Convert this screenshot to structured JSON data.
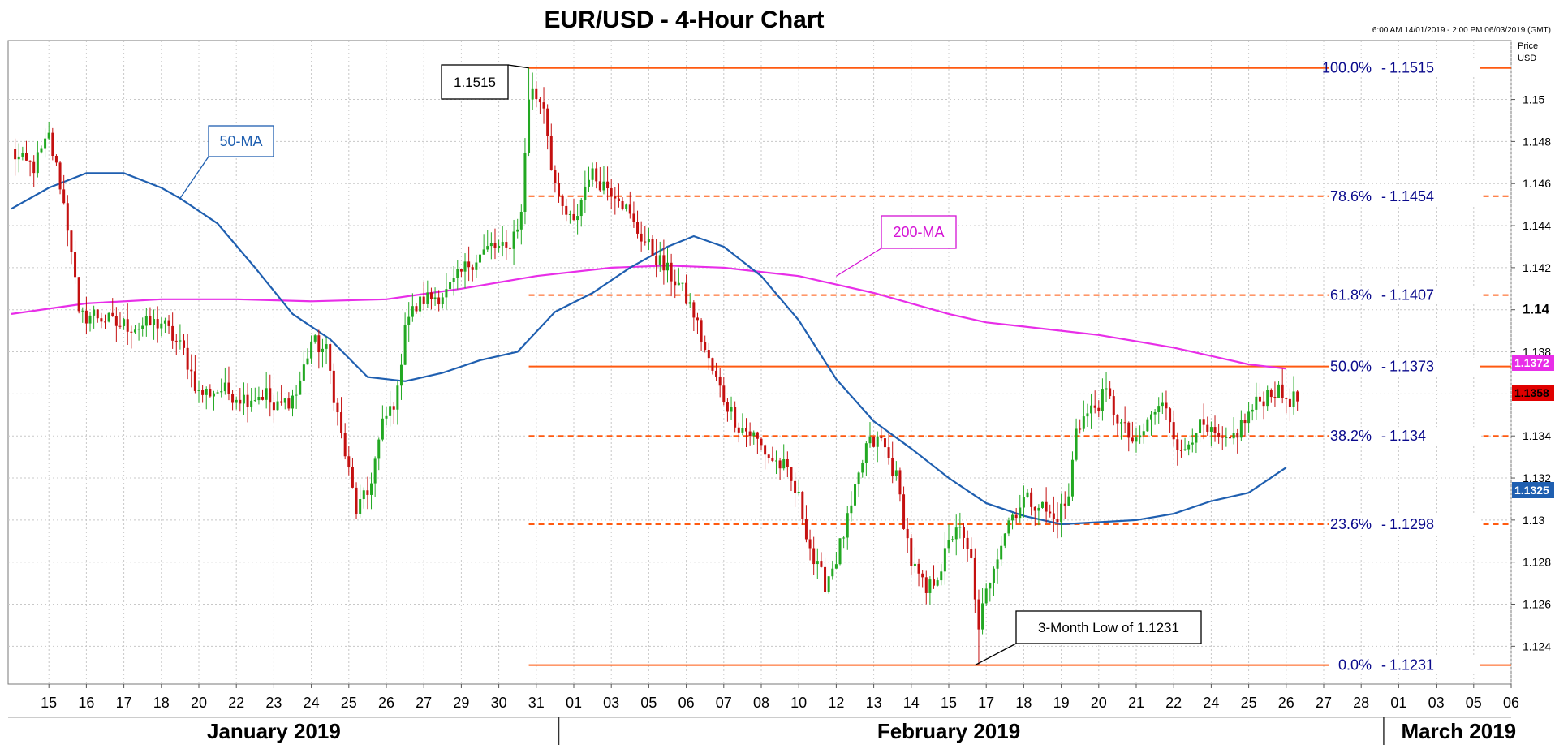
{
  "chart_data": {
    "type": "candlestick",
    "title": "EUR/USD - 4-Hour Chart",
    "date_range": "6:00 AM 14/01/2019 - 2:00 PM 06/03/2019 (GMT)",
    "y_axis_title": [
      "Price",
      "USD"
    ],
    "ylim": [
      1.1222,
      1.1528
    ],
    "y_ticks": [
      {
        "value": 1.124,
        "label": "1.124"
      },
      {
        "value": 1.126,
        "label": "1.126"
      },
      {
        "value": 1.128,
        "label": "1.128"
      },
      {
        "value": 1.13,
        "label": "1.13"
      },
      {
        "value": 1.132,
        "label": "1.132"
      },
      {
        "value": 1.134,
        "label": "1.134"
      },
      {
        "value": 1.136,
        "label": "1.136"
      },
      {
        "value": 1.138,
        "label": "1.138"
      },
      {
        "value": 1.14,
        "label": "1.14",
        "bold": true
      },
      {
        "value": 1.142,
        "label": "1.142"
      },
      {
        "value": 1.144,
        "label": "1.144"
      },
      {
        "value": 1.146,
        "label": "1.146"
      },
      {
        "value": 1.148,
        "label": "1.148"
      },
      {
        "value": 1.15,
        "label": "1.15"
      }
    ],
    "x_ticks": [
      {
        "label": "15",
        "i": 10
      },
      {
        "label": "16",
        "i": 20
      },
      {
        "label": "17",
        "i": 30
      },
      {
        "label": "18",
        "i": 40
      },
      {
        "label": "20",
        "i": 50
      },
      {
        "label": "22",
        "i": 60
      },
      {
        "label": "23",
        "i": 70
      },
      {
        "label": "24",
        "i": 80
      },
      {
        "label": "25",
        "i": 90
      },
      {
        "label": "26",
        "i": 100
      },
      {
        "label": "27",
        "i": 110
      },
      {
        "label": "29",
        "i": 120
      },
      {
        "label": "30",
        "i": 130
      },
      {
        "label": "31",
        "i": 140
      },
      {
        "label": "01",
        "i": 150
      },
      {
        "label": "03",
        "i": 160
      },
      {
        "label": "05",
        "i": 170
      },
      {
        "label": "06",
        "i": 180
      },
      {
        "label": "07",
        "i": 190
      },
      {
        "label": "08",
        "i": 200
      },
      {
        "label": "10",
        "i": 210
      },
      {
        "label": "12",
        "i": 220
      },
      {
        "label": "13",
        "i": 230
      },
      {
        "label": "14",
        "i": 240
      },
      {
        "label": "15",
        "i": 250
      },
      {
        "label": "17",
        "i": 260
      },
      {
        "label": "18",
        "i": 270
      },
      {
        "label": "19",
        "i": 280
      },
      {
        "label": "20",
        "i": 290
      },
      {
        "label": "21",
        "i": 300
      },
      {
        "label": "22",
        "i": 310
      },
      {
        "label": "24",
        "i": 320
      },
      {
        "label": "25",
        "i": 330
      },
      {
        "label": "26",
        "i": 340
      },
      {
        "label": "27",
        "i": 350
      },
      {
        "label": "28",
        "i": 360
      },
      {
        "label": "01",
        "i": 370
      },
      {
        "label": "03",
        "i": 380
      },
      {
        "label": "05",
        "i": 390
      },
      {
        "label": "06",
        "i": 400
      }
    ],
    "months": [
      {
        "label": "January 2019",
        "i": 70
      },
      {
        "label": "February 2019",
        "i": 250
      },
      {
        "label": "March 2019",
        "i": 386
      }
    ],
    "month_separators": [
      146,
      366
    ],
    "fib_levels": [
      {
        "value": 1.1515,
        "label": "100.0%",
        "price": "1.1515",
        "style": "solid"
      },
      {
        "value": 1.1454,
        "label": "78.6%",
        "price": "1.1454",
        "style": "dashed"
      },
      {
        "value": 1.1407,
        "label": "61.8%",
        "price": "1.1407",
        "style": "dashed"
      },
      {
        "value": 1.1373,
        "label": "50.0%",
        "price": "1.1373",
        "style": "solid"
      },
      {
        "value": 1.134,
        "label": "38.2%",
        "price": "1.134",
        "style": "dashed"
      },
      {
        "value": 1.1298,
        "label": "23.6%",
        "price": "1.1298",
        "style": "dashed"
      },
      {
        "value": 1.1231,
        "label": "0.0%",
        "price": "1.1231",
        "style": "solid"
      }
    ],
    "fib_start_i": 138,
    "price_tags": [
      {
        "value": 1.1372,
        "label": "1.1372",
        "color": "#e82ee8"
      },
      {
        "value": 1.1358,
        "label": "1.1358",
        "color": "#e00000"
      },
      {
        "value": 1.1325,
        "label": "1.1325",
        "color": "#1f5fb0"
      }
    ],
    "annotations": [
      {
        "text": "1.1515",
        "target_i": 138,
        "target_v": 1.1515
      },
      {
        "text": "50-MA",
        "target_i": 45,
        "target_v": 1.1453,
        "color": "#1f5fb0"
      },
      {
        "text": "200-MA",
        "target_i": 220,
        "target_v": 1.1416,
        "color": "#d412d4"
      },
      {
        "text": "3-Month Low of 1.1231",
        "target_i": 257,
        "target_v": 1.1231
      }
    ],
    "ma_50": {
      "name": "50-MA",
      "points": [
        [
          0,
          1.1448
        ],
        [
          10,
          1.1458
        ],
        [
          20,
          1.1465
        ],
        [
          30,
          1.1465
        ],
        [
          40,
          1.1458
        ],
        [
          45,
          1.1453
        ],
        [
          55,
          1.1441
        ],
        [
          65,
          1.142
        ],
        [
          75,
          1.1398
        ],
        [
          85,
          1.1386
        ],
        [
          95,
          1.1368
        ],
        [
          105,
          1.1366
        ],
        [
          115,
          1.137
        ],
        [
          125,
          1.1376
        ],
        [
          135,
          1.138
        ],
        [
          145,
          1.1399
        ],
        [
          155,
          1.1408
        ],
        [
          165,
          1.142
        ],
        [
          175,
          1.143
        ],
        [
          182,
          1.1435
        ],
        [
          190,
          1.143
        ],
        [
          200,
          1.1416
        ],
        [
          210,
          1.1395
        ],
        [
          220,
          1.1367
        ],
        [
          230,
          1.1347
        ],
        [
          240,
          1.1334
        ],
        [
          250,
          1.132
        ],
        [
          260,
          1.1308
        ],
        [
          270,
          1.1302
        ],
        [
          280,
          1.1298
        ],
        [
          290,
          1.1299
        ],
        [
          300,
          1.13
        ],
        [
          310,
          1.1303
        ],
        [
          320,
          1.1309
        ],
        [
          330,
          1.1313
        ],
        [
          340,
          1.1325
        ]
      ]
    },
    "ma_200": {
      "name": "200-MA",
      "points": [
        [
          0,
          1.1398
        ],
        [
          20,
          1.1403
        ],
        [
          40,
          1.1405
        ],
        [
          60,
          1.1405
        ],
        [
          80,
          1.1404
        ],
        [
          100,
          1.1405
        ],
        [
          120,
          1.141
        ],
        [
          140,
          1.1416
        ],
        [
          160,
          1.142
        ],
        [
          175,
          1.1421
        ],
        [
          190,
          1.142
        ],
        [
          200,
          1.1418
        ],
        [
          210,
          1.1416
        ],
        [
          220,
          1.1412
        ],
        [
          230,
          1.1408
        ],
        [
          240,
          1.1403
        ],
        [
          250,
          1.1398
        ],
        [
          260,
          1.1394
        ],
        [
          270,
          1.1392
        ],
        [
          280,
          1.139
        ],
        [
          290,
          1.1388
        ],
        [
          300,
          1.1385
        ],
        [
          310,
          1.1382
        ],
        [
          320,
          1.1378
        ],
        [
          330,
          1.1374
        ],
        [
          340,
          1.1372
        ]
      ]
    },
    "close_anchors": [
      [
        0,
        1.1475
      ],
      [
        3,
        1.147
      ],
      [
        6,
        1.1468
      ],
      [
        10,
        1.1482
      ],
      [
        13,
        1.146
      ],
      [
        16,
        1.143
      ],
      [
        18,
        1.1396
      ],
      [
        22,
        1.1398
      ],
      [
        28,
        1.1393
      ],
      [
        34,
        1.1392
      ],
      [
        40,
        1.1394
      ],
      [
        46,
        1.138
      ],
      [
        50,
        1.136
      ],
      [
        56,
        1.1362
      ],
      [
        62,
        1.1358
      ],
      [
        68,
        1.136
      ],
      [
        70,
        1.1352
      ],
      [
        76,
        1.136
      ],
      [
        80,
        1.1385
      ],
      [
        84,
        1.138
      ],
      [
        88,
        1.134
      ],
      [
        92,
        1.1305
      ],
      [
        95,
        1.1312
      ],
      [
        99,
        1.1345
      ],
      [
        103,
        1.136
      ],
      [
        105,
        1.1395
      ],
      [
        110,
        1.1405
      ],
      [
        116,
        1.1408
      ],
      [
        122,
        1.1422
      ],
      [
        128,
        1.143
      ],
      [
        132,
        1.1428
      ],
      [
        136,
        1.1445
      ],
      [
        138,
        1.1505
      ],
      [
        142,
        1.1498
      ],
      [
        144,
        1.147
      ],
      [
        146,
        1.145
      ],
      [
        150,
        1.144
      ],
      [
        154,
        1.1465
      ],
      [
        158,
        1.146
      ],
      [
        162,
        1.1455
      ],
      [
        166,
        1.144
      ],
      [
        170,
        1.143
      ],
      [
        174,
        1.142
      ],
      [
        178,
        1.1412
      ],
      [
        182,
        1.1398
      ],
      [
        186,
        1.1375
      ],
      [
        190,
        1.1358
      ],
      [
        194,
        1.1345
      ],
      [
        198,
        1.134
      ],
      [
        202,
        1.133
      ],
      [
        206,
        1.1325
      ],
      [
        210,
        1.131
      ],
      [
        214,
        1.128
      ],
      [
        217,
        1.127
      ],
      [
        220,
        1.1282
      ],
      [
        224,
        1.1305
      ],
      [
        228,
        1.1335
      ],
      [
        232,
        1.1338
      ],
      [
        236,
        1.132
      ],
      [
        240,
        1.128
      ],
      [
        244,
        1.1265
      ],
      [
        248,
        1.1278
      ],
      [
        252,
        1.1298
      ],
      [
        256,
        1.128
      ],
      [
        258,
        1.125
      ],
      [
        262,
        1.128
      ],
      [
        266,
        1.13
      ],
      [
        270,
        1.131
      ],
      [
        274,
        1.1308
      ],
      [
        278,
        1.13
      ],
      [
        282,
        1.131
      ],
      [
        284,
        1.1345
      ],
      [
        288,
        1.1352
      ],
      [
        292,
        1.136
      ],
      [
        296,
        1.1345
      ],
      [
        300,
        1.1335
      ],
      [
        304,
        1.135
      ],
      [
        308,
        1.1355
      ],
      [
        312,
        1.133
      ],
      [
        316,
        1.1345
      ],
      [
        320,
        1.134
      ],
      [
        324,
        1.1335
      ],
      [
        328,
        1.1345
      ],
      [
        332,
        1.1355
      ],
      [
        336,
        1.1362
      ],
      [
        340,
        1.1358
      ]
    ]
  }
}
